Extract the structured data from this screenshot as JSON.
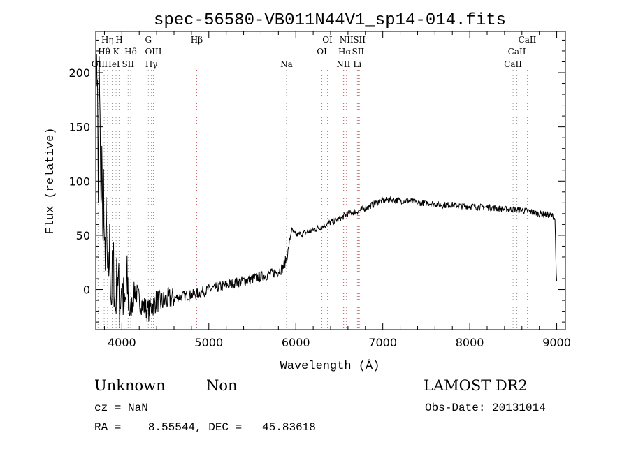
{
  "chart_data": {
    "type": "line",
    "title": "spec-56580-VB011N44V1_sp14-014.fits",
    "xlabel": "Wavelength (Å)",
    "ylabel": "Flux (relative)",
    "xlim": [
      3700,
      9100
    ],
    "ylim": [
      -37,
      238
    ],
    "xticks": [
      4000,
      5000,
      6000,
      7000,
      8000,
      9000
    ],
    "yticks": [
      0,
      50,
      100,
      150,
      200
    ],
    "series": [
      {
        "x": [
          3700,
          3710,
          3720,
          3730,
          3740,
          3750,
          3760,
          3770,
          3780,
          3790,
          3800,
          3820,
          3840,
          3860,
          3880,
          3900,
          3925,
          3950,
          3975,
          4000,
          4030,
          4060,
          4100,
          4150,
          4200,
          4250,
          4300,
          4350,
          4400,
          4450,
          4500,
          4600,
          4700,
          4800,
          4900,
          5000,
          5100,
          5200,
          5300,
          5400,
          5500,
          5600,
          5700,
          5800,
          5850,
          5900,
          5950,
          6000,
          6100,
          6200,
          6300,
          6400,
          6500,
          6600,
          6700,
          6800,
          6900,
          7000,
          7100,
          7200,
          7300,
          7400,
          7500,
          7600,
          7700,
          7800,
          7900,
          8000,
          8100,
          8200,
          8300,
          8400,
          8500,
          8600,
          8700,
          8800,
          8900,
          8950,
          8970,
          8980,
          8990,
          9000
        ],
        "y": [
          110,
          230,
          180,
          90,
          200,
          150,
          60,
          140,
          40,
          100,
          20,
          60,
          0,
          40,
          -10,
          30,
          -20,
          20,
          -15,
          10,
          -25,
          5,
          -20,
          0,
          -10,
          -15,
          -20,
          -15,
          -10,
          -12,
          -10,
          -8,
          -6,
          -5,
          -3,
          0,
          2,
          4,
          6,
          8,
          10,
          12,
          14,
          17,
          20,
          30,
          55,
          50,
          52,
          55,
          58,
          62,
          65,
          70,
          72,
          75,
          79,
          82,
          83,
          82,
          82,
          80,
          80,
          79,
          78,
          78,
          77,
          77,
          76,
          76,
          75,
          74,
          74,
          73,
          72,
          70,
          69,
          68,
          67,
          65,
          30,
          5
        ]
      }
    ],
    "lines": [
      {
        "label": "OII",
        "x": 3727,
        "row": 3,
        "color": "#999999"
      },
      {
        "label": "Hθ",
        "x": 3797,
        "row": 2,
        "color": "#999999"
      },
      {
        "label": "Hη",
        "x": 3835,
        "row": 1,
        "color": "#999999"
      },
      {
        "label": "HeI",
        "x": 3889,
        "row": 3,
        "color": "#999999"
      },
      {
        "label": "K",
        "x": 3934,
        "row": 2,
        "color": "#999999"
      },
      {
        "label": "H",
        "x": 3969,
        "row": 1,
        "color": "#999999"
      },
      {
        "label": "SII",
        "x": 4072,
        "row": 3,
        "color": "#999999"
      },
      {
        "label": "Hδ",
        "x": 4102,
        "row": 2,
        "color": "#999999"
      },
      {
        "label": "G",
        "x": 4305,
        "row": 1,
        "color": "#999999"
      },
      {
        "label": "Hγ",
        "x": 4340,
        "row": 3,
        "color": "#999999"
      },
      {
        "label": "OIII",
        "x": 4363,
        "row": 2,
        "color": "#999999"
      },
      {
        "label": "Hβ",
        "x": 4861,
        "row": 1,
        "color": "#cc6666"
      },
      {
        "label": "Na",
        "x": 5893,
        "row": 3,
        "color": "#999999"
      },
      {
        "label": "OI",
        "x": 6300,
        "row": 2,
        "color": "#cc6666"
      },
      {
        "label": "OI",
        "x": 6364,
        "row": 1,
        "color": "#999999"
      },
      {
        "label": "NII",
        "x": 6548,
        "row": 3,
        "color": "#cc6666"
      },
      {
        "label": "NII",
        "x": 6583,
        "row": 1,
        "color": "#cc6666"
      },
      {
        "label": "Hα",
        "x": 6563,
        "row": 2,
        "color": "#cc6666"
      },
      {
        "label": "Li",
        "x": 6708,
        "row": 3,
        "color": "#999999"
      },
      {
        "label": "SII",
        "x": 6716,
        "row": 2,
        "color": "#cc6666"
      },
      {
        "label": "SII",
        "x": 6731,
        "row": 1,
        "color": "#cc6666"
      },
      {
        "label": "CaII",
        "x": 8498,
        "row": 3,
        "color": "#999999"
      },
      {
        "label": "CaII",
        "x": 8542,
        "row": 2,
        "color": "#999999"
      },
      {
        "label": "CaII",
        "x": 8662,
        "row": 1,
        "color": "#999999"
      }
    ]
  },
  "info": {
    "class": "Unknown",
    "subclass": "Non",
    "survey": "LAMOST DR2",
    "cz": "cz = NaN",
    "obs_date": "Obs-Date: 20131014",
    "radec": "RA =    8.55544, DEC =   45.83618"
  }
}
